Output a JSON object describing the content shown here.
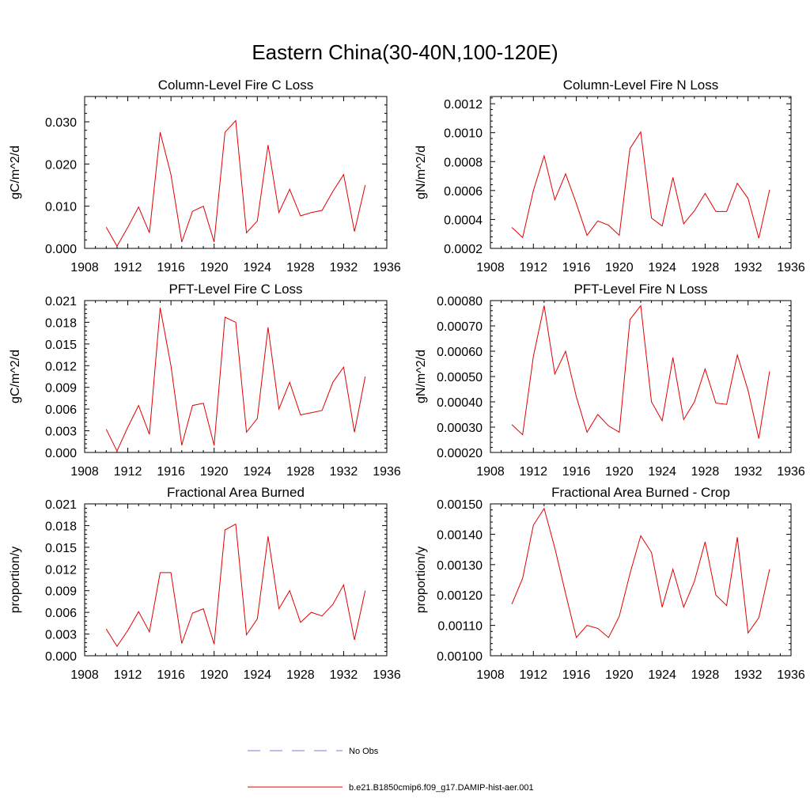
{
  "figure": {
    "title": "Eastern China(30-40N,100-120E)"
  },
  "legend": {
    "entries": [
      {
        "label": "No Obs",
        "color": "#7b7bd6",
        "dash": "dashed"
      },
      {
        "label": "b.e21.B1850cmip6.f09_g17.DAMIP-hist-aer.001",
        "color": "#e00000",
        "dash": "solid"
      }
    ]
  },
  "chart_data": [
    {
      "type": "line",
      "title": "Column-Level Fire C Loss",
      "xlabel": "",
      "ylabel": "gC/m^2/d",
      "xlim": [
        1908,
        1936
      ],
      "ylim": [
        0,
        0.036
      ],
      "xticks": [
        1908,
        1912,
        1916,
        1920,
        1924,
        1928,
        1932,
        1936
      ],
      "yticks": [
        0,
        0.01,
        0.02,
        0.03
      ],
      "ytick_labels": [
        "0.000",
        "0.010",
        "0.020",
        "0.030"
      ],
      "series": [
        {
          "color": "#e00000",
          "x": [
            1910,
            1911,
            1912,
            1913,
            1914,
            1915,
            1916,
            1917,
            1918,
            1919,
            1920,
            1921,
            1922,
            1923,
            1924,
            1925,
            1926,
            1927,
            1928,
            1929,
            1930,
            1931,
            1932,
            1933,
            1934
          ],
          "y": [
            0.005,
            0.0005,
            0.005,
            0.0098,
            0.0037,
            0.0275,
            0.0175,
            0.0015,
            0.0088,
            0.01,
            0.0015,
            0.0275,
            0.0303,
            0.0037,
            0.0065,
            0.0245,
            0.0085,
            0.014,
            0.0077,
            0.0085,
            0.009,
            0.0135,
            0.0175,
            0.004,
            0.015
          ]
        }
      ]
    },
    {
      "type": "line",
      "title": "Column-Level Fire N Loss",
      "xlabel": "",
      "ylabel": "gN/m^2/d",
      "xlim": [
        1908,
        1936
      ],
      "ylim": [
        0.0002,
        0.00125
      ],
      "xticks": [
        1908,
        1912,
        1916,
        1920,
        1924,
        1928,
        1932,
        1936
      ],
      "yticks": [
        0.0002,
        0.0004,
        0.0006,
        0.0008,
        0.001,
        0.0012
      ],
      "ytick_labels": [
        "0.0002",
        "0.0004",
        "0.0006",
        "0.0008",
        "0.0010",
        "0.0012"
      ],
      "series": [
        {
          "color": "#e00000",
          "x": [
            1910,
            1911,
            1912,
            1913,
            1914,
            1915,
            1916,
            1917,
            1918,
            1919,
            1920,
            1921,
            1922,
            1923,
            1924,
            1925,
            1926,
            1927,
            1928,
            1929,
            1930,
            1931,
            1932,
            1933,
            1934
          ],
          "y": [
            0.000345,
            0.000275,
            0.0006,
            0.00084,
            0.000535,
            0.000715,
            0.00051,
            0.00029,
            0.00039,
            0.00036,
            0.00029,
            0.00089,
            0.001005,
            0.00041,
            0.000355,
            0.00069,
            0.00037,
            0.00046,
            0.00058,
            0.000455,
            0.000455,
            0.00065,
            0.000545,
            0.00027,
            0.000605
          ]
        }
      ]
    },
    {
      "type": "line",
      "title": "PFT-Level Fire C Loss",
      "xlabel": "",
      "ylabel": "gC/m^2/d",
      "xlim": [
        1908,
        1936
      ],
      "ylim": [
        0,
        0.021
      ],
      "xticks": [
        1908,
        1912,
        1916,
        1920,
        1924,
        1928,
        1932,
        1936
      ],
      "yticks": [
        0,
        0.003,
        0.006,
        0.009,
        0.012,
        0.015,
        0.018,
        0.021
      ],
      "ytick_labels": [
        "0.000",
        "0.003",
        "0.006",
        "0.009",
        "0.012",
        "0.015",
        "0.018",
        "0.021"
      ],
      "series": [
        {
          "color": "#e00000",
          "x": [
            1910,
            1911,
            1912,
            1913,
            1914,
            1915,
            1916,
            1917,
            1918,
            1919,
            1920,
            1921,
            1922,
            1923,
            1924,
            1925,
            1926,
            1927,
            1928,
            1929,
            1930,
            1931,
            1932,
            1933,
            1934
          ],
          "y": [
            0.0032,
            0.0002,
            0.0035,
            0.0065,
            0.0025,
            0.02,
            0.012,
            0.001,
            0.0065,
            0.0068,
            0.001,
            0.0187,
            0.018,
            0.0028,
            0.0047,
            0.0173,
            0.006,
            0.0097,
            0.0052,
            0.0055,
            0.0058,
            0.0097,
            0.0118,
            0.0028,
            0.0105
          ]
        }
      ]
    },
    {
      "type": "line",
      "title": "PFT-Level Fire N Loss",
      "xlabel": "",
      "ylabel": "gN/m^2/d",
      "xlim": [
        1908,
        1936
      ],
      "ylim": [
        0.0002,
        0.0008
      ],
      "xticks": [
        1908,
        1912,
        1916,
        1920,
        1924,
        1928,
        1932,
        1936
      ],
      "yticks": [
        0.0002,
        0.0003,
        0.0004,
        0.0005,
        0.0006,
        0.0007,
        0.0008
      ],
      "ytick_labels": [
        "0.00020",
        "0.00030",
        "0.00040",
        "0.00050",
        "0.00060",
        "0.00070",
        "0.00080"
      ],
      "series": [
        {
          "color": "#e00000",
          "x": [
            1910,
            1911,
            1912,
            1913,
            1914,
            1915,
            1916,
            1917,
            1918,
            1919,
            1920,
            1921,
            1922,
            1923,
            1924,
            1925,
            1926,
            1927,
            1928,
            1929,
            1930,
            1931,
            1932,
            1933,
            1934
          ],
          "y": [
            0.00031,
            0.00027,
            0.00058,
            0.00078,
            0.00051,
            0.0006,
            0.00042,
            0.00028,
            0.00035,
            0.000305,
            0.00028,
            0.000725,
            0.00078,
            0.0004,
            0.000325,
            0.000575,
            0.00033,
            0.0004,
            0.00053,
            0.000395,
            0.00039,
            0.000585,
            0.000445,
            0.000255,
            0.00052
          ]
        }
      ]
    },
    {
      "type": "line",
      "title": "Fractional Area Burned",
      "xlabel": "",
      "ylabel": "proportion/y",
      "xlim": [
        1908,
        1936
      ],
      "ylim": [
        0,
        0.021
      ],
      "xticks": [
        1908,
        1912,
        1916,
        1920,
        1924,
        1928,
        1932,
        1936
      ],
      "yticks": [
        0,
        0.003,
        0.006,
        0.009,
        0.012,
        0.015,
        0.018,
        0.021
      ],
      "ytick_labels": [
        "0.000",
        "0.003",
        "0.006",
        "0.009",
        "0.012",
        "0.015",
        "0.018",
        "0.021"
      ],
      "series": [
        {
          "color": "#e00000",
          "x": [
            1910,
            1911,
            1912,
            1913,
            1914,
            1915,
            1916,
            1917,
            1918,
            1919,
            1920,
            1921,
            1922,
            1923,
            1924,
            1925,
            1926,
            1927,
            1928,
            1929,
            1930,
            1931,
            1932,
            1933,
            1934
          ],
          "y": [
            0.0037,
            0.0013,
            0.0035,
            0.0061,
            0.0033,
            0.0115,
            0.0115,
            0.0017,
            0.0059,
            0.0065,
            0.0016,
            0.0174,
            0.0182,
            0.0029,
            0.0051,
            0.0165,
            0.0065,
            0.009,
            0.0046,
            0.006,
            0.0055,
            0.0071,
            0.0098,
            0.0022,
            0.009
          ]
        }
      ]
    },
    {
      "type": "line",
      "title": "Fractional Area Burned - Crop",
      "xlabel": "",
      "ylabel": "proportion/y",
      "xlim": [
        1908,
        1936
      ],
      "ylim": [
        0.001,
        0.0015
      ],
      "xticks": [
        1908,
        1912,
        1916,
        1920,
        1924,
        1928,
        1932,
        1936
      ],
      "yticks": [
        0.001,
        0.0011,
        0.0012,
        0.0013,
        0.0014,
        0.0015
      ],
      "ytick_labels": [
        "0.00100",
        "0.00110",
        "0.00120",
        "0.00130",
        "0.00140",
        "0.00150"
      ],
      "series": [
        {
          "color": "#e00000",
          "x": [
            1910,
            1911,
            1912,
            1913,
            1914,
            1915,
            1916,
            1917,
            1918,
            1919,
            1920,
            1921,
            1922,
            1923,
            1924,
            1925,
            1926,
            1927,
            1928,
            1929,
            1930,
            1931,
            1932,
            1933,
            1934
          ],
          "y": [
            0.00117,
            0.001255,
            0.00143,
            0.001485,
            0.001355,
            0.001205,
            0.00106,
            0.0011,
            0.00109,
            0.00106,
            0.00113,
            0.00127,
            0.001395,
            0.00134,
            0.00116,
            0.001285,
            0.00116,
            0.001245,
            0.001375,
            0.0012,
            0.001165,
            0.00139,
            0.001075,
            0.001125,
            0.001285
          ]
        }
      ]
    }
  ]
}
